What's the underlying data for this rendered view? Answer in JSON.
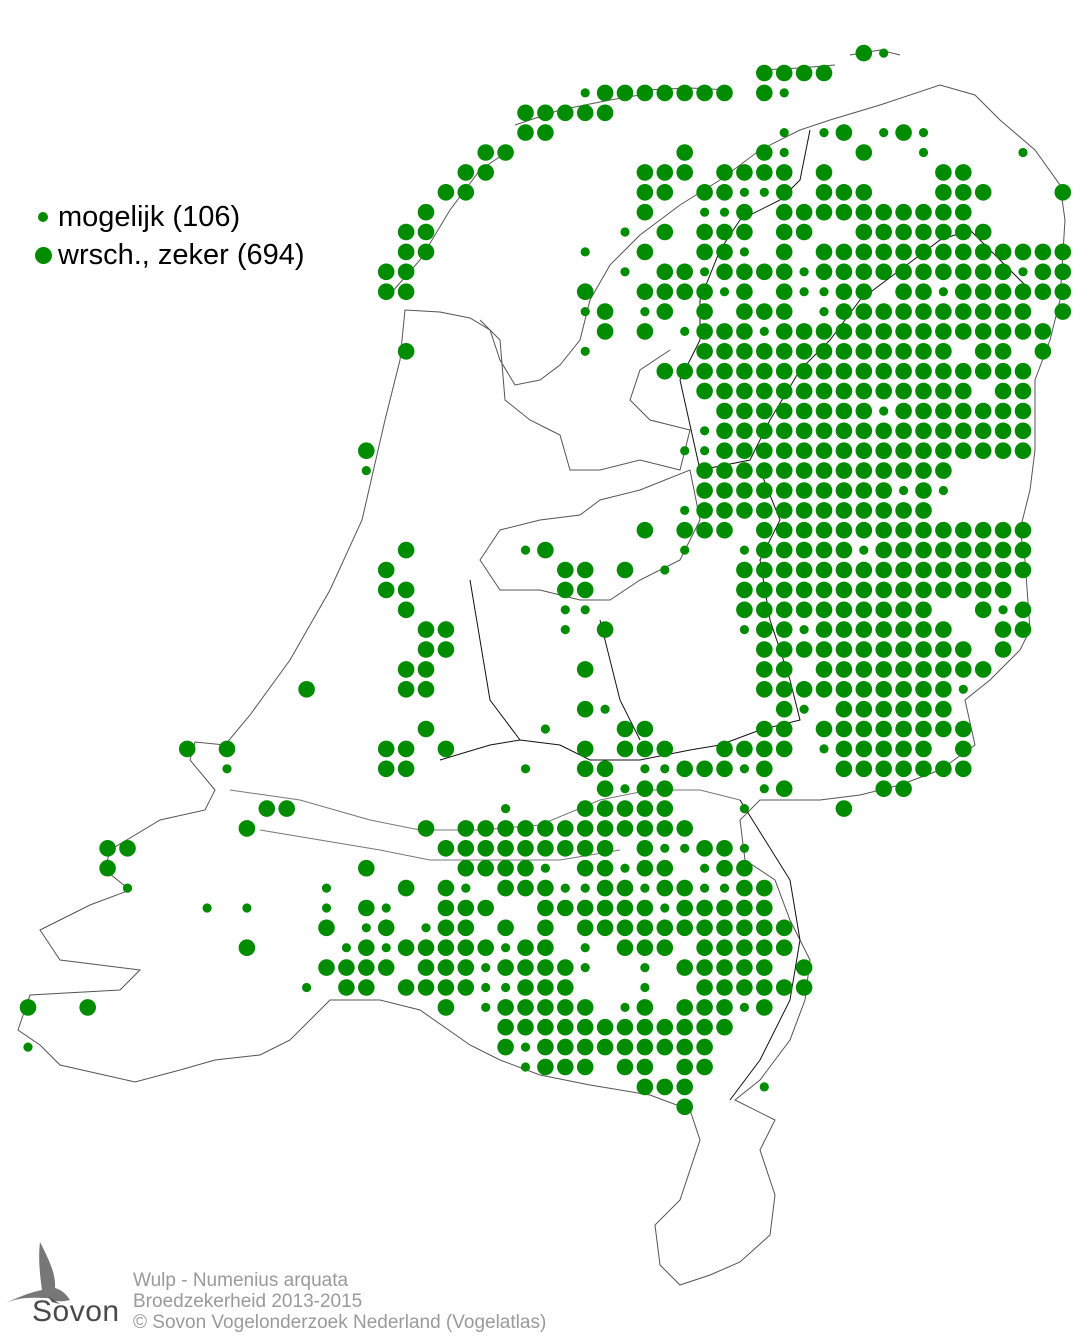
{
  "map": {
    "dot_color": "#008C00",
    "outline_color": "#555555"
  },
  "legend": {
    "items": [
      {
        "label": "mogelijk (106)",
        "symbol": "small-dot"
      },
      {
        "label": "wrsch., zeker (694)",
        "symbol": "large-dot"
      }
    ]
  },
  "footer": {
    "species": "Wulp - Numenius arquata",
    "subtitle": "Broedzekerheid 2013-2015",
    "copyright": "© Sovon Vogelonderzoek Nederland (Vogelatlas)"
  },
  "logo": {
    "text": "Sovon",
    "icon": "swallow-icon"
  }
}
